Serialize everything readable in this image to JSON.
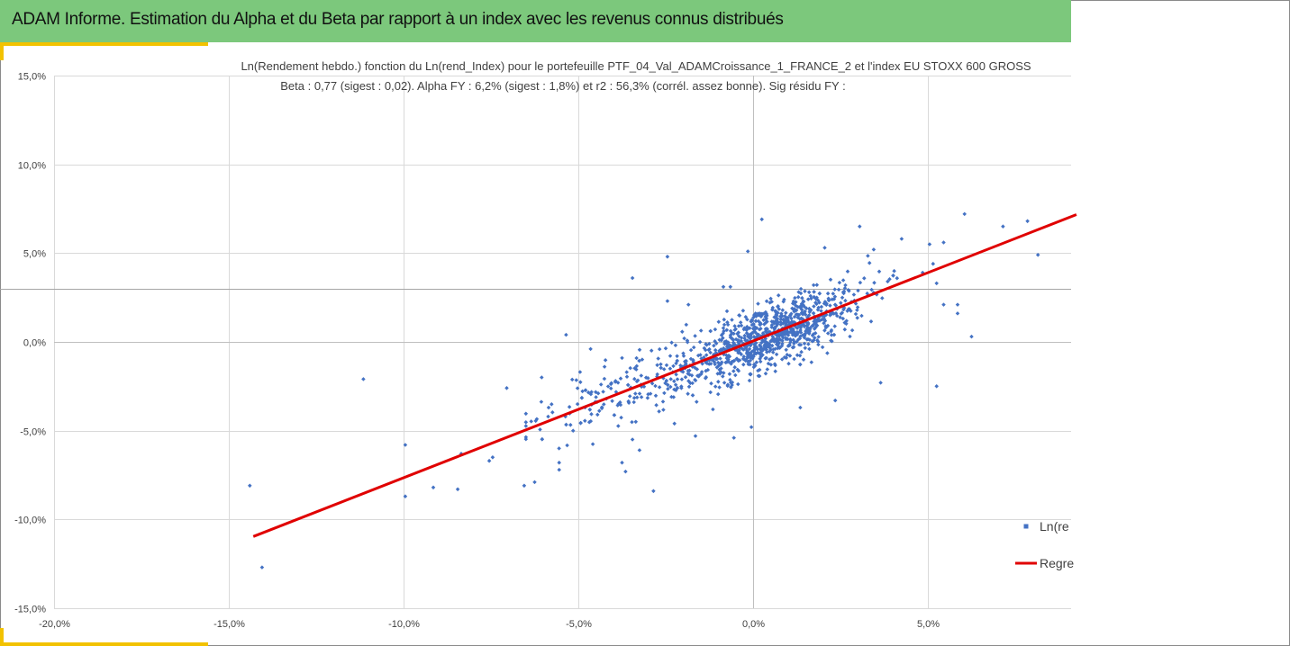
{
  "header": {
    "title": "ADAM Informe. Estimation du Alpha et du Beta par rapport à un index avec les revenus connus distribués"
  },
  "colors": {
    "banner": "#7cc87c",
    "accent": "#f2c200",
    "points": "#4472c4",
    "regression": "#e00000",
    "grid": "#d9d9d9"
  },
  "chart_data": {
    "type": "scatter",
    "title_line1": "Ln(Rendement hebdo.) fonction du Ln(rend_Index) pour le portefeuille PTF_04_Val_ADAMCroissance_1_FRANCE_2 et l'index EU STOXX 600 GROSS",
    "title_line2": "Beta : 0,77 (sigest : 0,02).  Alpha FY : 6,2% (sigest : 1,8%) et r2 : 56,3% (corrél. assez bonne). Sig résidu FY :",
    "xlim": [
      -0.2,
      0.0925
    ],
    "ylim": [
      -0.15,
      0.15
    ],
    "x_ticks": [
      -0.2,
      -0.15,
      -0.1,
      -0.05,
      0.0,
      0.05
    ],
    "y_ticks": [
      -0.15,
      -0.1,
      -0.05,
      0.0,
      0.05,
      0.1,
      0.15
    ],
    "x_tick_labels": [
      "-20,0%",
      "-15,0%",
      "-10,0%",
      "-5,0%",
      "0,0%",
      "5,0%"
    ],
    "y_tick_labels": [
      "-15,0%",
      "-10,0%",
      "-5,0%",
      "0,0%",
      "5,0%",
      "10,0%",
      "15,0%"
    ],
    "reference_line_y": 0.03,
    "regression": {
      "beta": 0.77,
      "intercept": 0.0005,
      "x_start": -0.143,
      "x_end": 0.0925
    },
    "legend": [
      {
        "label": "Ln(re",
        "kind": "points"
      },
      {
        "label": "Regre",
        "kind": "line"
      }
    ],
    "n_cluster_points": 1150,
    "outliers": [
      [
        -0.144,
        -0.081
      ],
      [
        -0.1405,
        -0.127
      ],
      [
        -0.1115,
        -0.021
      ],
      [
        -0.0995,
        -0.058
      ],
      [
        -0.0995,
        -0.087
      ],
      [
        -0.0915,
        -0.082
      ],
      [
        -0.0845,
        -0.083
      ],
      [
        -0.0835,
        -0.063
      ],
      [
        -0.0745,
        -0.065
      ],
      [
        -0.0755,
        -0.067
      ],
      [
        -0.0705,
        -0.026
      ],
      [
        -0.0655,
        -0.081
      ],
      [
        -0.0625,
        -0.079
      ],
      [
        -0.0605,
        -0.02
      ],
      [
        -0.0585,
        -0.037
      ],
      [
        -0.0555,
        -0.072
      ],
      [
        -0.0555,
        -0.068
      ],
      [
        -0.0535,
        0.004
      ],
      [
        -0.0515,
        -0.05
      ],
      [
        -0.0495,
        -0.017
      ],
      [
        -0.0465,
        -0.004
      ],
      [
        -0.0445,
        -0.041
      ],
      [
        -0.0435,
        -0.024
      ],
      [
        -0.0425,
        -0.014
      ],
      [
        -0.0375,
        -0.068
      ],
      [
        -0.0365,
        -0.073
      ],
      [
        -0.0345,
        -0.055
      ],
      [
        -0.0325,
        -0.061
      ],
      [
        -0.0345,
        0.036
      ],
      [
        -0.0285,
        -0.084
      ],
      [
        -0.0245,
        0.048
      ],
      [
        -0.0245,
        0.023
      ],
      [
        -0.0225,
        -0.046
      ],
      [
        -0.0185,
        0.021
      ],
      [
        -0.0165,
        -0.053
      ],
      [
        -0.0115,
        -0.038
      ],
      [
        -0.0085,
        0.031
      ],
      [
        -0.0065,
        0.031
      ],
      [
        -0.0055,
        -0.054
      ],
      [
        -0.0015,
        0.051
      ],
      [
        -0.0005,
        -0.048
      ],
      [
        0.0025,
        0.069
      ],
      [
        0.0135,
        -0.037
      ],
      [
        0.0205,
        0.053
      ],
      [
        0.0235,
        -0.033
      ],
      [
        0.0305,
        0.065
      ],
      [
        0.0345,
        0.052
      ],
      [
        0.0365,
        -0.023
      ],
      [
        0.0385,
        0.034
      ],
      [
        0.0425,
        0.058
      ],
      [
        0.0485,
        0.039
      ],
      [
        0.0505,
        0.055
      ],
      [
        0.0515,
        0.044
      ],
      [
        0.0525,
        0.033
      ],
      [
        0.0525,
        -0.025
      ],
      [
        0.0545,
        0.021
      ],
      [
        0.0545,
        0.056
      ],
      [
        0.0585,
        0.021
      ],
      [
        0.0585,
        0.016
      ],
      [
        0.0625,
        0.003
      ],
      [
        0.0605,
        0.072
      ],
      [
        0.0715,
        0.065
      ],
      [
        0.0785,
        0.068
      ],
      [
        0.0815,
        0.049
      ]
    ]
  }
}
